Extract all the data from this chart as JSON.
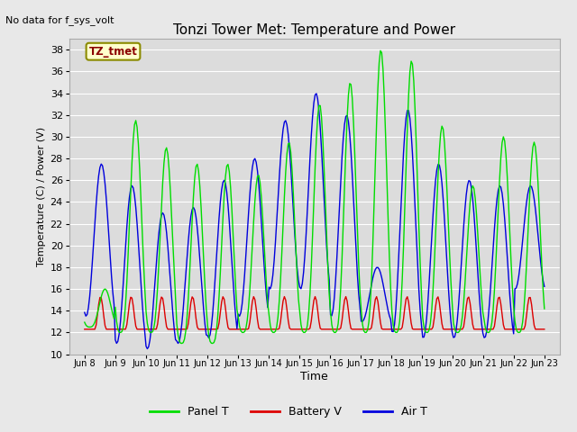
{
  "title": "Tonzi Tower Met: Temperature and Power",
  "subtitle": "No data for f_sys_volt",
  "xlabel": "Time",
  "ylabel": "Temperature (C) / Power (V)",
  "ylim": [
    10,
    39
  ],
  "yticks": [
    10,
    12,
    14,
    16,
    18,
    20,
    22,
    24,
    26,
    28,
    30,
    32,
    34,
    36,
    38
  ],
  "xtick_positions": [
    0,
    1,
    2,
    3,
    4,
    5,
    6,
    7,
    8,
    9,
    10,
    11,
    12,
    13,
    14,
    15
  ],
  "xtick_labels": [
    "Jun 8",
    "Jun 9",
    "Jun 10",
    "Jun 11",
    "Jun 12",
    "Jun 13",
    "Jun 14",
    "Jun 15",
    "Jun 16",
    "Jun 17",
    "Jun 18",
    "Jun 19",
    "Jun 20",
    "Jun 21",
    "Jun 22",
    "Jun 23"
  ],
  "panel_t_color": "#00DD00",
  "battery_v_color": "#DD0000",
  "air_t_color": "#0000DD",
  "legend_labels": [
    "Panel T",
    "Battery V",
    "Air T"
  ],
  "legend_colors": [
    "#00DD00",
    "#DD0000",
    "#0000DD"
  ],
  "watermark_text": "TZ_tmet",
  "background_color": "#E8E8E8",
  "plot_bg_color": "#DCDCDC",
  "grid_color": "#FFFFFF",
  "panel_t_peaks": [
    16.0,
    31.5,
    29.0,
    27.5,
    27.5,
    26.5,
    29.5,
    33.0,
    35.0,
    38.0,
    37.0,
    31.0,
    25.5,
    30.0,
    29.5
  ],
  "panel_t_troughs": [
    12.5,
    12.0,
    12.0,
    11.0,
    11.0,
    12.0,
    12.0,
    12.0,
    12.0,
    12.0,
    12.0,
    12.0,
    12.0,
    12.0,
    12.0
  ],
  "air_t_peaks": [
    27.5,
    25.5,
    23.0,
    23.5,
    26.0,
    28.0,
    31.5,
    34.0,
    32.0,
    18.0,
    32.5,
    27.5,
    26.0,
    25.5,
    25.5
  ],
  "air_t_troughs": [
    13.5,
    11.0,
    10.5,
    11.0,
    11.5,
    13.5,
    16.0,
    16.0,
    13.5,
    13.0,
    12.0,
    11.5,
    11.5,
    11.5,
    16.0
  ],
  "battery_v_peak": 15.3,
  "battery_v_trough": 12.3,
  "n_days": 15,
  "hours_per_day": 24,
  "peak_hour": 13,
  "trough_hour": 4
}
